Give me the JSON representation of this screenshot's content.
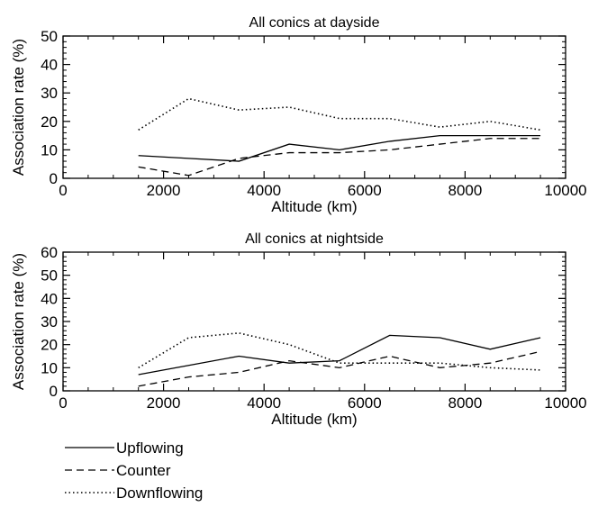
{
  "chart_data": [
    {
      "type": "line",
      "title": "All conics at dayside",
      "xlabel": "Altitude (km)",
      "ylabel": "Association rate (%)",
      "xlim": [
        0,
        10000
      ],
      "ylim": [
        0,
        50
      ],
      "x_ticks": [
        0,
        2000,
        4000,
        6000,
        8000,
        10000
      ],
      "y_ticks": [
        0,
        10,
        20,
        30,
        40,
        50
      ],
      "x": [
        1500,
        2500,
        3500,
        4500,
        5500,
        6500,
        7500,
        8500,
        9500
      ],
      "series": [
        {
          "name": "Upflowing",
          "style": "solid",
          "values": [
            8,
            7,
            6,
            12,
            10,
            13,
            15,
            15,
            15
          ]
        },
        {
          "name": "Counter",
          "style": "dashed",
          "values": [
            4,
            1,
            7,
            9,
            9,
            10,
            12,
            14,
            14
          ]
        },
        {
          "name": "Downflowing",
          "style": "dotted",
          "values": [
            17,
            28,
            24,
            25,
            21,
            21,
            18,
            20,
            17
          ]
        }
      ],
      "grid": false
    },
    {
      "type": "line",
      "title": "All conics at nightside",
      "xlabel": "Altitude (km)",
      "ylabel": "Association rate (%)",
      "xlim": [
        0,
        10000
      ],
      "ylim": [
        0,
        60
      ],
      "x_ticks": [
        0,
        2000,
        4000,
        6000,
        8000,
        10000
      ],
      "y_ticks": [
        0,
        10,
        20,
        30,
        40,
        50,
        60
      ],
      "x": [
        1500,
        2500,
        3500,
        4500,
        5500,
        6500,
        7500,
        8500,
        9500
      ],
      "series": [
        {
          "name": "Upflowing",
          "style": "solid",
          "values": [
            7,
            11,
            15,
            12,
            13,
            24,
            23,
            18,
            23
          ]
        },
        {
          "name": "Counter",
          "style": "dashed",
          "values": [
            2,
            6,
            8,
            13,
            10,
            15,
            10,
            12,
            17
          ]
        },
        {
          "name": "Downflowing",
          "style": "dotted",
          "values": [
            10,
            23,
            25,
            20,
            12,
            12,
            12,
            10,
            9
          ]
        }
      ],
      "grid": false
    }
  ],
  "legend": [
    {
      "label": "Upflowing",
      "style": "solid"
    },
    {
      "label": "Counter",
      "style": "dashed"
    },
    {
      "label": "Downflowing",
      "style": "dotted"
    }
  ],
  "colors": {
    "ink": "#000000",
    "background": "#ffffff"
  }
}
